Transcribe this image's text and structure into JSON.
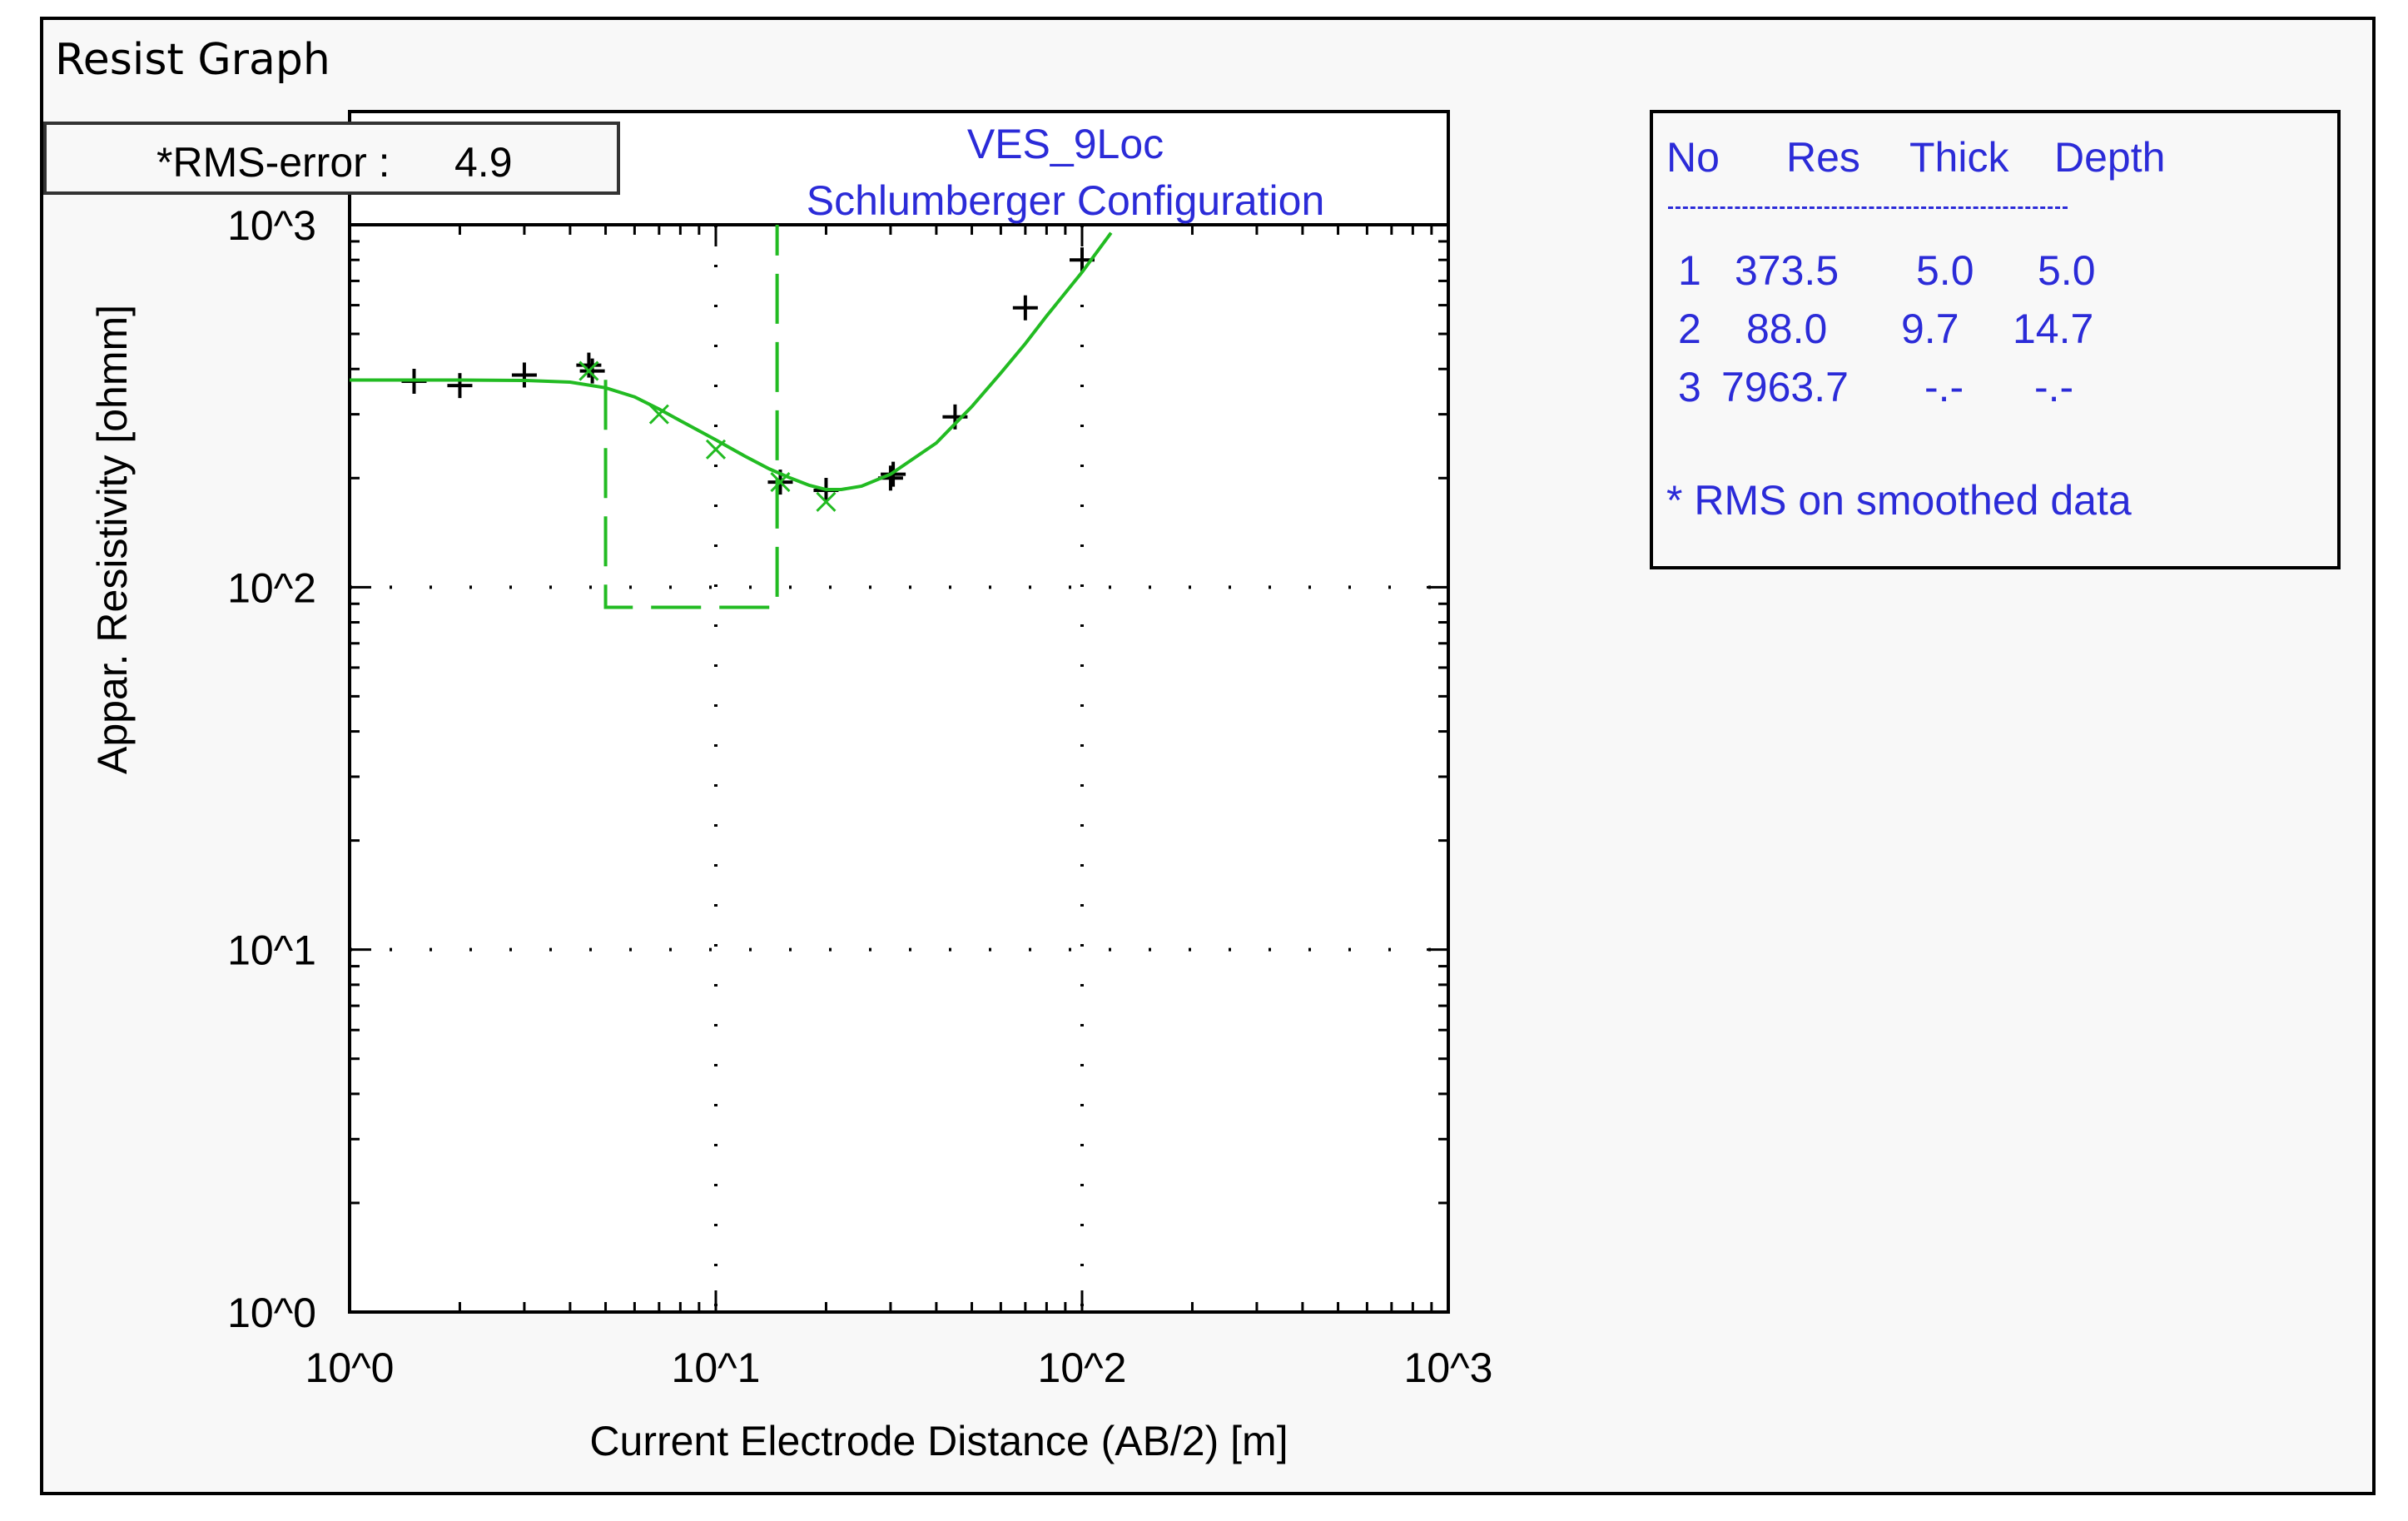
{
  "window": {
    "title": "Resist Graph"
  },
  "rms": {
    "label": "*RMS-error :",
    "value": "4.9"
  },
  "colors": {
    "model": "#22bb22",
    "text_blue": "#2b2bd8",
    "data": "#000000"
  },
  "layers": {
    "headers": [
      "No",
      "Res",
      "Thick",
      "Depth"
    ],
    "separator": "----------------------------",
    "rows": [
      {
        "no": "1",
        "res": "373.5",
        "thick": "5.0",
        "depth": "5.0"
      },
      {
        "no": "2",
        "res": "88.0",
        "thick": "9.7",
        "depth": "14.7"
      },
      {
        "no": "3",
        "res": "7963.7",
        "thick": "-.-",
        "depth": "-.-"
      }
    ],
    "note": "* RMS on smoothed data"
  },
  "chart_data": {
    "type": "scatter",
    "title": "VES_9Loc",
    "subtitle": "Schlumberger Configuration",
    "xlabel": "Current Electrode Distance (AB/2) [m]",
    "ylabel": "Appar. Resistivity [ohmm]",
    "xscale": "log",
    "yscale": "log",
    "xlim": [
      1,
      1000
    ],
    "ylim": [
      1,
      1000
    ],
    "xticks": [
      "10^0",
      "10^1",
      "10^2",
      "10^3"
    ],
    "yticks": [
      "10^0",
      "10^1",
      "10^2",
      "10^3"
    ],
    "grid": "dotted",
    "series": [
      {
        "marker": "plus",
        "x": [
          1.5,
          2,
          3,
          4.5,
          4.6,
          15,
          20,
          30,
          30.5,
          45,
          70,
          100
        ],
        "y": [
          370,
          360,
          385,
          410,
          395,
          195,
          185,
          200,
          205,
          295,
          590,
          800
        ]
      },
      {
        "marker": "x",
        "x": [
          4.5,
          7,
          10,
          15,
          20
        ],
        "y": [
          395,
          300,
          240,
          195,
          172
        ]
      },
      {
        "type": "line",
        "x": [
          1,
          2,
          3,
          4,
          5,
          6,
          7,
          8,
          10,
          12,
          14,
          16,
          18,
          20,
          22,
          25,
          30,
          40,
          50,
          60,
          70,
          80,
          100,
          120
        ],
        "y": [
          373,
          373,
          372,
          368,
          355,
          335,
          310,
          288,
          255,
          230,
          212,
          200,
          191,
          186,
          186,
          190,
          205,
          250,
          315,
          390,
          470,
          560,
          740,
          950
        ]
      },
      {
        "type": "model-step",
        "x": [
          5,
          5,
          14.7,
          14.7
        ],
        "y": [
          373.5,
          88.0,
          88.0,
          1000
        ]
      }
    ]
  }
}
